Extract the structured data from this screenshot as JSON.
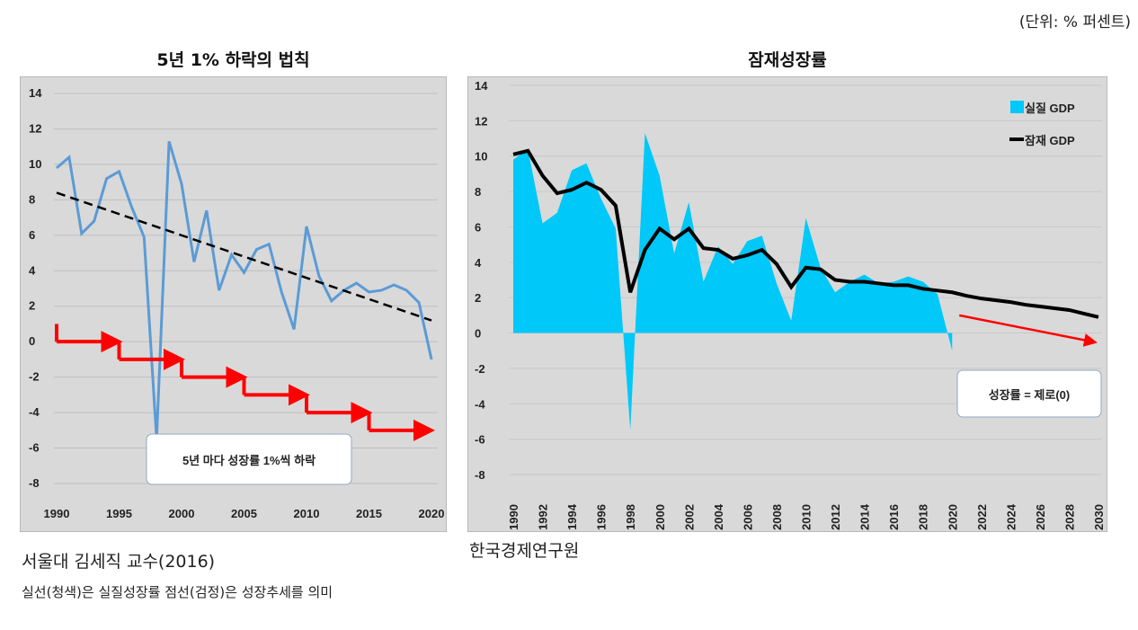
{
  "unit_note": "(단위: % 퍼센트)",
  "left": {
    "title": "5년 1% 하락의 법칙",
    "source": "서울대 김세직 교수(2016)",
    "caption": "실선(청색)은 실질성장률 점선(검정)은 성장추세를 의미"
  },
  "right": {
    "title": "잠재성장률",
    "source": "한국경제연구원"
  },
  "chart_data": [
    {
      "type": "line",
      "title": "5년 1% 하락의 법칙",
      "ylim": [
        -8,
        14
      ],
      "yticks": [
        "14",
        "12",
        "10",
        "8",
        "6",
        "4",
        "2",
        "0",
        "-2",
        "-4",
        "-6",
        "-8"
      ],
      "xticks": [
        "1990",
        "1995",
        "2000",
        "2005",
        "2010",
        "2015",
        "2020"
      ],
      "grid": true,
      "x": [
        1990,
        1991,
        1992,
        1993,
        1994,
        1995,
        1996,
        1997,
        1998,
        1999,
        2000,
        2001,
        2002,
        2003,
        2004,
        2005,
        2006,
        2007,
        2008,
        2009,
        2010,
        2011,
        2012,
        2013,
        2014,
        2015,
        2016,
        2017,
        2018,
        2019,
        2020
      ],
      "series": [
        {
          "values": [
            9.8,
            10.4,
            6.1,
            6.8,
            9.2,
            9.6,
            7.6,
            5.9,
            -5.5,
            11.3,
            8.9,
            4.5,
            7.4,
            2.9,
            4.9,
            3.9,
            5.2,
            5.5,
            2.8,
            0.7,
            6.5,
            3.7,
            2.3,
            2.9,
            3.3,
            2.8,
            2.9,
            3.2,
            2.9,
            2.2,
            -1.0
          ],
          "color": "#5b9bd5",
          "style": "solid"
        }
      ],
      "trend": {
        "from": [
          1990,
          8.4
        ],
        "to": [
          2020,
          1.2
        ],
        "color": "#000000",
        "style": "dashed"
      },
      "steps": {
        "start": [
          1990,
          1
        ],
        "levels": [
          [
            1990,
            1995,
            0
          ],
          [
            1995,
            2000,
            -1
          ],
          [
            2000,
            2005,
            -2
          ],
          [
            2005,
            2010,
            -3
          ],
          [
            2010,
            2015,
            -4
          ],
          [
            2015,
            2020,
            -5
          ]
        ],
        "color": "#ff0000"
      },
      "annotation": "5년 마다 성장률 1%씩 하락",
      "background": "#d9d9d9"
    },
    {
      "type": "area",
      "title": "잠재성장률",
      "ylim": [
        -8,
        14
      ],
      "yticks": [
        "14",
        "12",
        "10",
        "8",
        "6",
        "4",
        "2",
        "0",
        "-2",
        "-4",
        "-6",
        "-8"
      ],
      "xticks": [
        "1990",
        "1992",
        "1994",
        "1996",
        "1998",
        "2000",
        "2002",
        "2004",
        "2006",
        "2008",
        "2010",
        "2012",
        "2014",
        "2016",
        "2018",
        "2020",
        "2022",
        "2024",
        "2026",
        "2028",
        "2030"
      ],
      "grid": true,
      "legend": "top-right",
      "series": [
        {
          "name": "실질 GDP",
          "type": "area",
          "color": "#00c8f8",
          "x": [
            1990,
            1991,
            1992,
            1993,
            1994,
            1995,
            1996,
            1997,
            1998,
            1999,
            2000,
            2001,
            2002,
            2003,
            2004,
            2005,
            2006,
            2007,
            2008,
            2009,
            2010,
            2011,
            2012,
            2013,
            2014,
            2015,
            2016,
            2017,
            2018,
            2019,
            2020
          ],
          "values": [
            9.8,
            10.4,
            6.2,
            6.8,
            9.2,
            9.6,
            7.6,
            5.9,
            -5.5,
            11.3,
            8.9,
            4.5,
            7.4,
            2.9,
            4.9,
            3.9,
            5.2,
            5.5,
            2.8,
            0.7,
            6.5,
            3.7,
            2.3,
            2.9,
            3.3,
            2.8,
            2.9,
            3.2,
            2.9,
            2.2,
            -1.0
          ]
        },
        {
          "name": "잠재 GDP",
          "type": "line",
          "color": "#000000",
          "x": [
            1990,
            1991,
            1992,
            1993,
            1994,
            1995,
            1996,
            1997,
            1998,
            1999,
            2000,
            2001,
            2002,
            2003,
            2004,
            2005,
            2006,
            2007,
            2008,
            2009,
            2010,
            2011,
            2012,
            2013,
            2014,
            2015,
            2016,
            2017,
            2018,
            2019,
            2020,
            2021,
            2022,
            2023,
            2024,
            2025,
            2026,
            2027,
            2028,
            2029,
            2030
          ],
          "values": [
            10.1,
            10.3,
            8.9,
            7.9,
            8.1,
            8.5,
            8.1,
            7.2,
            2.3,
            4.7,
            5.9,
            5.3,
            5.9,
            4.8,
            4.7,
            4.2,
            4.4,
            4.7,
            3.9,
            2.6,
            3.7,
            3.6,
            3.0,
            2.9,
            2.9,
            2.8,
            2.7,
            2.7,
            2.5,
            2.4,
            2.3,
            2.1,
            1.95,
            1.85,
            1.75,
            1.6,
            1.5,
            1.4,
            1.3,
            1.1,
            0.9
          ]
        }
      ],
      "arrow": {
        "from": [
          2020,
          1.0
        ],
        "to": [
          2030,
          -0.5
        ],
        "color": "#ff0000"
      },
      "annotation": "성장률 = 제로(0)",
      "background": "#d9d9d9"
    }
  ]
}
